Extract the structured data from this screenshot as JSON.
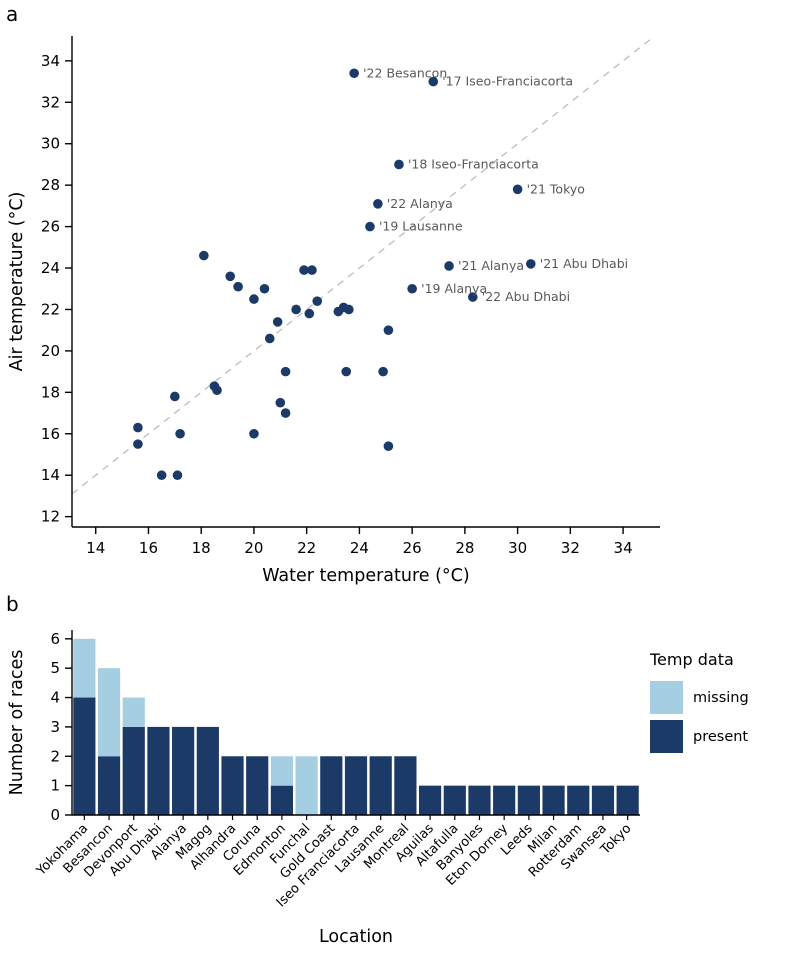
{
  "panel_a": {
    "label": "a"
  },
  "panel_b": {
    "label": "b",
    "legend": {
      "title": "Temp data",
      "items": [
        {
          "key": "missing",
          "label": "missing"
        },
        {
          "key": "present",
          "label": "present"
        }
      ]
    }
  },
  "colors": {
    "navy": "#1b3a67",
    "light_blue": "#a6cee3",
    "annotation_gray": "#595959",
    "dashed_line": "#c0c0c0",
    "axis": "#000000"
  },
  "chart_data": [
    {
      "type": "scatter",
      "title": "",
      "xlabel": "Water temperature (°C)",
      "ylabel": "Air temperature (°C)",
      "xlim": [
        13.1,
        35.4
      ],
      "ylim": [
        11.5,
        35.2
      ],
      "xticks": [
        14,
        16,
        18,
        20,
        22,
        24,
        26,
        28,
        30,
        32,
        34
      ],
      "yticks": [
        12,
        14,
        16,
        18,
        20,
        22,
        24,
        26,
        28,
        30,
        32,
        34
      ],
      "identity_line": true,
      "point_color": "#1b3a67",
      "points": [
        {
          "x": 23.8,
          "y": 33.4,
          "label": "'22 Besancon"
        },
        {
          "x": 26.8,
          "y": 33.0,
          "label": "'17 Iseo-Franciacorta"
        },
        {
          "x": 25.5,
          "y": 29.0,
          "label": "'18 Iseo-Franciacorta"
        },
        {
          "x": 30.0,
          "y": 27.8,
          "label": "'21 Tokyo"
        },
        {
          "x": 24.7,
          "y": 27.1,
          "label": "'22 Alanya"
        },
        {
          "x": 24.4,
          "y": 26.0,
          "label": "'19 Lausanne"
        },
        {
          "x": 27.4,
          "y": 24.1,
          "label": "'21 Alanya"
        },
        {
          "x": 30.5,
          "y": 24.2,
          "label": "'21 Abu Dhabi"
        },
        {
          "x": 26.0,
          "y": 23.0,
          "label": "'19 Alanya"
        },
        {
          "x": 28.3,
          "y": 22.6,
          "label": "'22 Abu Dhabi"
        },
        {
          "x": 15.6,
          "y": 15.5
        },
        {
          "x": 15.6,
          "y": 16.3
        },
        {
          "x": 16.5,
          "y": 14.0
        },
        {
          "x": 17.1,
          "y": 14.0
        },
        {
          "x": 17.2,
          "y": 16.0
        },
        {
          "x": 17.0,
          "y": 17.8
        },
        {
          "x": 18.1,
          "y": 24.6
        },
        {
          "x": 18.5,
          "y": 18.3
        },
        {
          "x": 18.6,
          "y": 18.1
        },
        {
          "x": 19.1,
          "y": 23.6
        },
        {
          "x": 19.4,
          "y": 23.1
        },
        {
          "x": 20.0,
          "y": 16.0
        },
        {
          "x": 20.0,
          "y": 22.5
        },
        {
          "x": 20.4,
          "y": 23.0
        },
        {
          "x": 20.6,
          "y": 20.6
        },
        {
          "x": 20.9,
          "y": 21.4
        },
        {
          "x": 21.0,
          "y": 17.5
        },
        {
          "x": 21.2,
          "y": 17.0
        },
        {
          "x": 21.2,
          "y": 19.0
        },
        {
          "x": 21.6,
          "y": 22.0
        },
        {
          "x": 21.9,
          "y": 23.9
        },
        {
          "x": 22.2,
          "y": 23.9
        },
        {
          "x": 22.1,
          "y": 21.8
        },
        {
          "x": 22.4,
          "y": 22.4
        },
        {
          "x": 23.2,
          "y": 21.9
        },
        {
          "x": 23.4,
          "y": 22.1
        },
        {
          "x": 23.6,
          "y": 22.0
        },
        {
          "x": 23.5,
          "y": 19.0
        },
        {
          "x": 24.9,
          "y": 19.0
        },
        {
          "x": 25.1,
          "y": 21.0
        },
        {
          "x": 25.1,
          "y": 15.4
        }
      ]
    },
    {
      "type": "bar",
      "stacked": true,
      "title": "",
      "xlabel": "Location",
      "ylabel": "Number of races",
      "ylim": [
        0,
        6.3
      ],
      "yticks": [
        0,
        1,
        2,
        3,
        4,
        5,
        6
      ],
      "legend_title": "Temp data",
      "colors": {
        "present": "#1b3a67",
        "missing": "#a6cee3"
      },
      "categories": [
        "Yokohama",
        "Besancon",
        "Devonport",
        "Abu Dhabi",
        "Alanya",
        "Magog",
        "Alhandra",
        "Coruna",
        "Edmonton",
        "Funchal",
        "Gold Coast",
        "Iseo Franciacorta",
        "Lausanne",
        "Montreal",
        "Aguilas",
        "Altafulla",
        "Banyoles",
        "Eton Dorney",
        "Leeds",
        "Milan",
        "Rotterdam",
        "Swansea",
        "Tokyo"
      ],
      "series": [
        {
          "name": "present",
          "values": [
            4,
            2,
            3,
            3,
            3,
            3,
            2,
            2,
            1,
            0,
            2,
            2,
            2,
            2,
            1,
            1,
            1,
            1,
            1,
            1,
            1,
            1,
            1
          ]
        },
        {
          "name": "missing",
          "values": [
            2,
            3,
            1,
            0,
            0,
            0,
            0,
            0,
            1,
            2,
            0,
            0,
            0,
            0,
            0,
            0,
            0,
            0,
            0,
            0,
            0,
            0,
            0
          ]
        }
      ]
    }
  ]
}
